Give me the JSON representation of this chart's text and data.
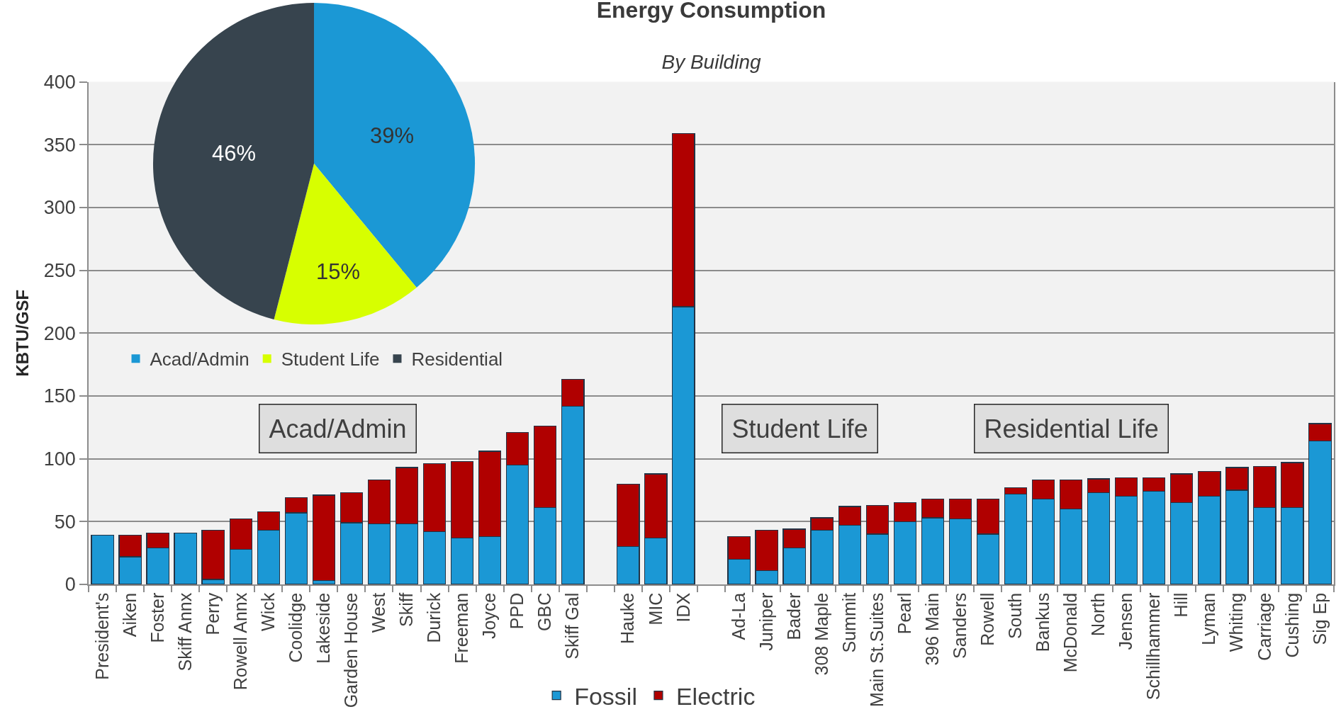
{
  "chart_data": [
    {
      "type": "bar",
      "title": "Energy Consumption",
      "subtitle": "By Building",
      "ylabel": "KBTU/GSF",
      "categories": [
        "President's",
        "Aiken",
        "Foster",
        "Skiff Annx",
        "Perry",
        "Rowell Annx",
        "Wick",
        "Coolidge",
        "Lakeside",
        "Garden House",
        "West",
        "Skiff",
        "Durick",
        "Freeman",
        "Joyce",
        "PPD",
        "GBC",
        "Skiff Gal",
        null,
        "Hauke",
        "MIC",
        "IDX",
        null,
        "Ad-La",
        "Juniper",
        "Bader",
        "308 Maple",
        "Summit",
        "Main St.Suites",
        "Pearl",
        "396 Main",
        "Sanders",
        "Rowell",
        "South",
        "Bankus",
        "McDonald",
        "North",
        "Jensen",
        "Schillhammer",
        "Hill",
        "Lyman",
        "Whiting",
        "Carriage",
        "Cushing",
        "Sig Ep"
      ],
      "series": [
        {
          "name": "Fossil",
          "color": "#1b98d5",
          "values": [
            39,
            22,
            29,
            41,
            4,
            28,
            43,
            57,
            3,
            49,
            48,
            48,
            42,
            37,
            38,
            95,
            61,
            142,
            null,
            30,
            37,
            221,
            null,
            20,
            11,
            29,
            43,
            47,
            40,
            50,
            53,
            52,
            40,
            72,
            68,
            60,
            73,
            70,
            74,
            65,
            70,
            75,
            61,
            61,
            114
          ]
        },
        {
          "name": "Electric",
          "color": "#b00000",
          "values": [
            null,
            17,
            12,
            null,
            39,
            24,
            15,
            12,
            68,
            24,
            35,
            45,
            54,
            61,
            68,
            26,
            65,
            21,
            null,
            50,
            51,
            138,
            null,
            18,
            32,
            15,
            10,
            15,
            23,
            15,
            15,
            16,
            28,
            5,
            15,
            23,
            11,
            15,
            11,
            23,
            20,
            18,
            33,
            36,
            14
          ]
        }
      ],
      "stacked": true,
      "ylim": [
        0,
        400
      ],
      "yticks": [
        0,
        50,
        100,
        150,
        200,
        250,
        300,
        350,
        400
      ],
      "grid": "y",
      "legend": "bottom",
      "annotations": [
        "Acad/Admin",
        "Student Life",
        "Residential Life"
      ]
    },
    {
      "type": "pie",
      "categories": [
        "Acad/Admin",
        "Student Life",
        "Residential"
      ],
      "values": [
        39,
        15,
        46
      ],
      "colors": [
        "#1b98d5",
        "#d7ff00",
        "#37444e"
      ],
      "value_labels": [
        "39%",
        "15%",
        "46%"
      ],
      "legend": "bottom"
    }
  ]
}
